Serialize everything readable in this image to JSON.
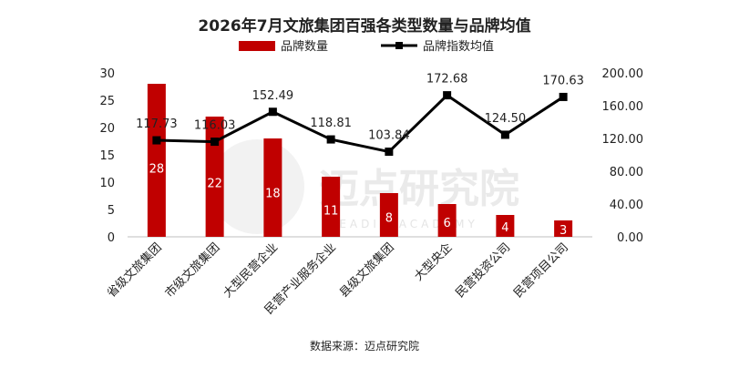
{
  "chart_data": {
    "type": "bar+line",
    "title": "2026年7月文旅集团百强各类型数量与品牌均值",
    "categories": [
      "省级文旅集团",
      "市级文旅集团",
      "大型民营企业",
      "民营产业服务企业",
      "县级文旅集团",
      "大型央企",
      "民营投资公司",
      "民营项目公司"
    ],
    "series": [
      {
        "name": "品牌数量",
        "type": "bar",
        "axis": "left",
        "color": "#c00000",
        "values": [
          28,
          22,
          18,
          11,
          8,
          6,
          4,
          3
        ]
      },
      {
        "name": "品牌指数均值",
        "type": "line",
        "axis": "right",
        "color": "#000000",
        "values": [
          117.73,
          116.03,
          152.49,
          118.81,
          103.84,
          172.68,
          124.5,
          170.63
        ],
        "labels": [
          "117.73",
          "116.03",
          "152.49",
          "118.81",
          "103.84",
          "172.68",
          "124.50",
          "170.63"
        ]
      }
    ],
    "y_left": {
      "ylim": [
        0,
        30
      ],
      "ticks": [
        "0",
        "5",
        "10",
        "15",
        "20",
        "25",
        "30"
      ]
    },
    "y_right": {
      "ylim": [
        0,
        200
      ],
      "ticks": [
        "0.00",
        "40.00",
        "80.00",
        "120.00",
        "160.00",
        "200.00"
      ]
    },
    "legend_position": "top",
    "grid": false
  },
  "source": "数据来源：迈点研究院",
  "watermark": {
    "main": "迈点研究院",
    "sub": "MEADIN ACADEMY"
  }
}
